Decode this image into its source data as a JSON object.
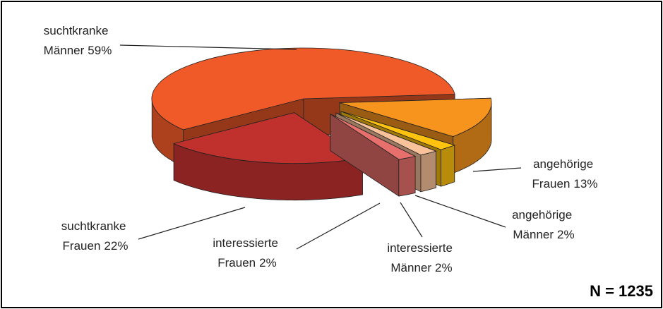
{
  "chart_data": {
    "type": "pie3d",
    "categories": [
      "angehörige Frauen",
      "angehörige Männer",
      "interessierte Männer",
      "interessierte Frauen",
      "suchtkranke Frauen",
      "suchtkranke Männer"
    ],
    "values": [
      13,
      2,
      2,
      2,
      22,
      59
    ],
    "value_labels": [
      "13%",
      "2%",
      "2%",
      "2%",
      "22%",
      "59%"
    ],
    "colors": [
      "#f7941d",
      "#ffc20e",
      "#f9c29a",
      "#e8706c",
      "#c0312e",
      "#f05a28"
    ],
    "annotation": "N = 1235"
  }
}
